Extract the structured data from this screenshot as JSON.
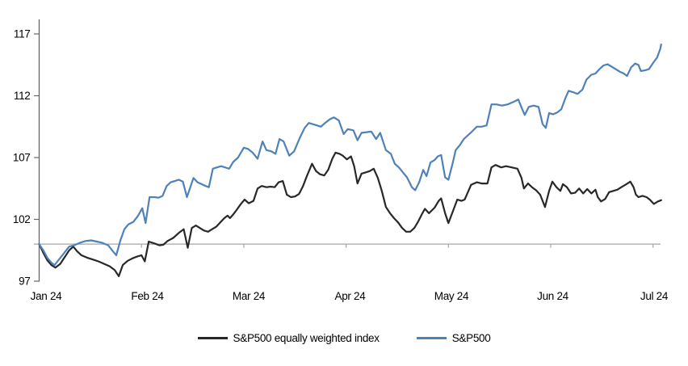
{
  "chart_data": {
    "type": "line",
    "title": "",
    "x_unit": "months_since_jan_2024",
    "x_axis": {
      "tick_labels": [
        "Jan 24",
        "Feb 24",
        "Mar 24",
        "Apr 24",
        "May 24",
        "Jun 24",
        "Jul 24"
      ],
      "range": [
        0,
        6.1
      ]
    },
    "y_axis": {
      "ticks": [
        97,
        102,
        107,
        112,
        117
      ],
      "range": [
        97,
        118.2
      ],
      "baseline": 100
    },
    "grid": false,
    "legend_position": "bottom-center",
    "series": [
      {
        "name": "S&P500 equally weighted index",
        "color": "#282828",
        "points": [
          [
            0,
            100
          ],
          [
            0.04,
            99.3
          ],
          [
            0.079,
            98.7
          ],
          [
            0.119,
            98.3
          ],
          [
            0.159,
            98.1
          ],
          [
            0.206,
            98.4
          ],
          [
            0.254,
            99
          ],
          [
            0.294,
            99.5
          ],
          [
            0.333,
            99.8
          ],
          [
            0.373,
            99.4
          ],
          [
            0.413,
            99.1
          ],
          [
            0.468,
            98.9
          ],
          [
            0.524,
            98.75
          ],
          [
            0.579,
            98.6
          ],
          [
            0.635,
            98.4
          ],
          [
            0.69,
            98.2
          ],
          [
            0.738,
            97.9
          ],
          [
            0.778,
            97.4
          ],
          [
            0.817,
            98.3
          ],
          [
            0.865,
            98.65
          ],
          [
            0.913,
            98.85
          ],
          [
            0.96,
            99
          ],
          [
            1,
            99.1
          ],
          [
            1.032,
            98.6
          ],
          [
            1.071,
            100.2
          ],
          [
            1.127,
            100.05
          ],
          [
            1.175,
            99.9
          ],
          [
            1.214,
            99.95
          ],
          [
            1.254,
            100.25
          ],
          [
            1.31,
            100.5
          ],
          [
            1.365,
            100.9
          ],
          [
            1.413,
            101.2
          ],
          [
            1.452,
            99.7
          ],
          [
            1.492,
            101.3
          ],
          [
            1.532,
            101.5
          ],
          [
            1.571,
            101.3
          ],
          [
            1.611,
            101.1
          ],
          [
            1.651,
            101
          ],
          [
            1.69,
            101.2
          ],
          [
            1.73,
            101.4
          ],
          [
            1.77,
            101.75
          ],
          [
            1.81,
            102.1
          ],
          [
            1.841,
            102.3
          ],
          [
            1.865,
            102.1
          ],
          [
            1.897,
            102.4
          ],
          [
            1.929,
            102.75
          ],
          [
            1.968,
            103.2
          ],
          [
            2.008,
            103.6
          ],
          [
            2.048,
            103.3
          ],
          [
            2.095,
            103.5
          ],
          [
            2.135,
            104.5
          ],
          [
            2.175,
            104.7
          ],
          [
            2.222,
            104.6
          ],
          [
            2.262,
            104.65
          ],
          [
            2.302,
            104.6
          ],
          [
            2.341,
            105
          ],
          [
            2.381,
            105.1
          ],
          [
            2.421,
            104
          ],
          [
            2.46,
            103.8
          ],
          [
            2.5,
            103.85
          ],
          [
            2.54,
            104.05
          ],
          [
            2.579,
            104.7
          ],
          [
            2.619,
            105.55
          ],
          [
            2.667,
            106.5
          ],
          [
            2.706,
            105.9
          ],
          [
            2.746,
            105.65
          ],
          [
            2.786,
            105.55
          ],
          [
            2.825,
            106
          ],
          [
            2.865,
            106.9
          ],
          [
            2.897,
            107.4
          ],
          [
            2.937,
            107.3
          ],
          [
            2.968,
            107.15
          ],
          [
            3.008,
            106.85
          ],
          [
            3.048,
            107.1
          ],
          [
            3.079,
            106.3
          ],
          [
            3.111,
            104.9
          ],
          [
            3.151,
            105.7
          ],
          [
            3.19,
            105.8
          ],
          [
            3.23,
            105.9
          ],
          [
            3.27,
            106.1
          ],
          [
            3.31,
            105.35
          ],
          [
            3.349,
            104.3
          ],
          [
            3.389,
            103
          ],
          [
            3.429,
            102.5
          ],
          [
            3.468,
            102.1
          ],
          [
            3.508,
            101.75
          ],
          [
            3.548,
            101.3
          ],
          [
            3.587,
            101
          ],
          [
            3.627,
            101
          ],
          [
            3.667,
            101.3
          ],
          [
            3.706,
            101.85
          ],
          [
            3.746,
            102.5
          ],
          [
            3.77,
            102.85
          ],
          [
            3.81,
            102.5
          ],
          [
            3.841,
            102.75
          ],
          [
            3.865,
            102.95
          ],
          [
            3.905,
            103.5
          ],
          [
            3.929,
            103.7
          ],
          [
            3.968,
            102.5
          ],
          [
            4,
            101.7
          ],
          [
            4.048,
            102.75
          ],
          [
            4.087,
            103.6
          ],
          [
            4.127,
            103.5
          ],
          [
            4.159,
            103.6
          ],
          [
            4.183,
            104.05
          ],
          [
            4.222,
            104.8
          ],
          [
            4.278,
            105
          ],
          [
            4.325,
            104.9
          ],
          [
            4.381,
            104.9
          ],
          [
            4.421,
            106.2
          ],
          [
            4.46,
            106.4
          ],
          [
            4.516,
            106.2
          ],
          [
            4.563,
            106.3
          ],
          [
            4.619,
            106.2
          ],
          [
            4.675,
            106.1
          ],
          [
            4.714,
            105.35
          ],
          [
            4.738,
            104.5
          ],
          [
            4.778,
            104.9
          ],
          [
            4.817,
            104.6
          ],
          [
            4.857,
            104.35
          ],
          [
            4.897,
            104
          ],
          [
            4.944,
            103
          ],
          [
            4.984,
            104.3
          ],
          [
            5.016,
            105.05
          ],
          [
            5.056,
            104.6
          ],
          [
            5.095,
            104.3
          ],
          [
            5.119,
            104.85
          ],
          [
            5.159,
            104.6
          ],
          [
            5.198,
            104.1
          ],
          [
            5.238,
            104.15
          ],
          [
            5.278,
            104.5
          ],
          [
            5.317,
            104.1
          ],
          [
            5.357,
            104.45
          ],
          [
            5.397,
            104.1
          ],
          [
            5.437,
            104.4
          ],
          [
            5.46,
            103.8
          ],
          [
            5.492,
            103.45
          ],
          [
            5.532,
            103.65
          ],
          [
            5.571,
            104.2
          ],
          [
            5.611,
            104.3
          ],
          [
            5.651,
            104.4
          ],
          [
            5.69,
            104.6
          ],
          [
            5.73,
            104.8
          ],
          [
            5.778,
            105.05
          ],
          [
            5.81,
            104.6
          ],
          [
            5.833,
            104
          ],
          [
            5.857,
            103.8
          ],
          [
            5.897,
            103.9
          ],
          [
            5.937,
            103.8
          ],
          [
            5.968,
            103.6
          ],
          [
            6.008,
            103.25
          ],
          [
            6.048,
            103.45
          ],
          [
            6.08,
            103.55
          ]
        ]
      },
      {
        "name": "S&P500",
        "color": "#4E81BA",
        "points": [
          [
            0,
            100
          ],
          [
            0.04,
            99.5
          ],
          [
            0.079,
            98.9
          ],
          [
            0.119,
            98.5
          ],
          [
            0.151,
            98.3
          ],
          [
            0.198,
            98.8
          ],
          [
            0.246,
            99.3
          ],
          [
            0.294,
            99.8
          ],
          [
            0.341,
            99.9
          ],
          [
            0.397,
            100.1
          ],
          [
            0.452,
            100.25
          ],
          [
            0.508,
            100.3
          ],
          [
            0.563,
            100.2
          ],
          [
            0.619,
            100.1
          ],
          [
            0.675,
            99.9
          ],
          [
            0.722,
            99.4
          ],
          [
            0.754,
            99.1
          ],
          [
            0.794,
            100.3
          ],
          [
            0.833,
            101.2
          ],
          [
            0.873,
            101.6
          ],
          [
            0.921,
            101.8
          ],
          [
            0.968,
            102.3
          ],
          [
            1.008,
            102.9
          ],
          [
            1.04,
            101.7
          ],
          [
            1.079,
            103.8
          ],
          [
            1.127,
            103.8
          ],
          [
            1.167,
            103.75
          ],
          [
            1.206,
            103.9
          ],
          [
            1.246,
            104.7
          ],
          [
            1.286,
            105
          ],
          [
            1.325,
            105.1
          ],
          [
            1.365,
            105.2
          ],
          [
            1.405,
            105.05
          ],
          [
            1.444,
            103.8
          ],
          [
            1.508,
            105.35
          ],
          [
            1.548,
            105
          ],
          [
            1.587,
            104.85
          ],
          [
            1.627,
            104.7
          ],
          [
            1.659,
            104.6
          ],
          [
            1.698,
            106.1
          ],
          [
            1.738,
            106.2
          ],
          [
            1.778,
            106.3
          ],
          [
            1.817,
            106.2
          ],
          [
            1.857,
            106.1
          ],
          [
            1.897,
            106.65
          ],
          [
            1.944,
            107
          ],
          [
            2,
            107.8
          ],
          [
            2.04,
            107.7
          ],
          [
            2.087,
            107.4
          ],
          [
            2.135,
            106.9
          ],
          [
            2.183,
            108.3
          ],
          [
            2.222,
            107.6
          ],
          [
            2.27,
            107.5
          ],
          [
            2.31,
            107.3
          ],
          [
            2.349,
            108.5
          ],
          [
            2.389,
            108.3
          ],
          [
            2.444,
            107.15
          ],
          [
            2.492,
            107.5
          ],
          [
            2.548,
            108.6
          ],
          [
            2.595,
            109.4
          ],
          [
            2.635,
            109.8
          ],
          [
            2.675,
            109.7
          ],
          [
            2.714,
            109.6
          ],
          [
            2.754,
            109.5
          ],
          [
            2.794,
            109.8
          ],
          [
            2.841,
            110.1
          ],
          [
            2.881,
            110.25
          ],
          [
            2.929,
            110
          ],
          [
            2.976,
            108.9
          ],
          [
            3.016,
            109.3
          ],
          [
            3.071,
            109.2
          ],
          [
            3.111,
            108.4
          ],
          [
            3.151,
            109
          ],
          [
            3.198,
            109.05
          ],
          [
            3.246,
            109.1
          ],
          [
            3.294,
            108.5
          ],
          [
            3.333,
            109
          ],
          [
            3.389,
            107.6
          ],
          [
            3.437,
            107.3
          ],
          [
            3.476,
            106.5
          ],
          [
            3.516,
            106.2
          ],
          [
            3.556,
            105.8
          ],
          [
            3.595,
            105.4
          ],
          [
            3.643,
            104.6
          ],
          [
            3.675,
            104.35
          ],
          [
            3.714,
            105
          ],
          [
            3.754,
            106
          ],
          [
            3.786,
            105.5
          ],
          [
            3.825,
            106.6
          ],
          [
            3.865,
            106.8
          ],
          [
            3.897,
            107.1
          ],
          [
            3.929,
            107.2
          ],
          [
            3.968,
            105.4
          ],
          [
            4,
            105.2
          ],
          [
            4.04,
            106.5
          ],
          [
            4.071,
            107.6
          ],
          [
            4.111,
            108
          ],
          [
            4.151,
            108.5
          ],
          [
            4.19,
            108.8
          ],
          [
            4.23,
            109.1
          ],
          [
            4.278,
            109.5
          ],
          [
            4.325,
            109.5
          ],
          [
            4.373,
            109.6
          ],
          [
            4.421,
            111.3
          ],
          [
            4.468,
            111.3
          ],
          [
            4.524,
            111.2
          ],
          [
            4.579,
            111.3
          ],
          [
            4.635,
            111.5
          ],
          [
            4.683,
            111.7
          ],
          [
            4.722,
            110.9
          ],
          [
            4.746,
            110.45
          ],
          [
            4.786,
            111.1
          ],
          [
            4.833,
            111.2
          ],
          [
            4.881,
            111.1
          ],
          [
            4.921,
            109.7
          ],
          [
            4.952,
            109.4
          ],
          [
            4.984,
            110.6
          ],
          [
            5.024,
            110.5
          ],
          [
            5.063,
            110.65
          ],
          [
            5.103,
            110.9
          ],
          [
            5.143,
            111.8
          ],
          [
            5.175,
            112.4
          ],
          [
            5.214,
            112.3
          ],
          [
            5.262,
            112.15
          ],
          [
            5.31,
            112.5
          ],
          [
            5.349,
            113.3
          ],
          [
            5.397,
            113.7
          ],
          [
            5.437,
            113.8
          ],
          [
            5.476,
            114.15
          ],
          [
            5.516,
            114.45
          ],
          [
            5.556,
            114.55
          ],
          [
            5.595,
            114.35
          ],
          [
            5.635,
            114.15
          ],
          [
            5.675,
            113.95
          ],
          [
            5.714,
            113.8
          ],
          [
            5.746,
            113.6
          ],
          [
            5.786,
            114.3
          ],
          [
            5.825,
            114.6
          ],
          [
            5.857,
            114.5
          ],
          [
            5.881,
            114
          ],
          [
            5.921,
            114.05
          ],
          [
            5.96,
            114.15
          ],
          [
            6,
            114.65
          ],
          [
            6.04,
            115.1
          ],
          [
            6.071,
            115.8
          ],
          [
            6.08,
            116.15
          ]
        ]
      }
    ]
  },
  "colors": {
    "background": "#FFFFFF",
    "axis": "#666666",
    "baseline": "#A6A6A6",
    "text": "#000000"
  },
  "legend": {
    "items": [
      {
        "label": "S&P500 equally weighted index",
        "color": "#282828"
      },
      {
        "label": "S&P500",
        "color": "#4E81BA"
      }
    ]
  }
}
